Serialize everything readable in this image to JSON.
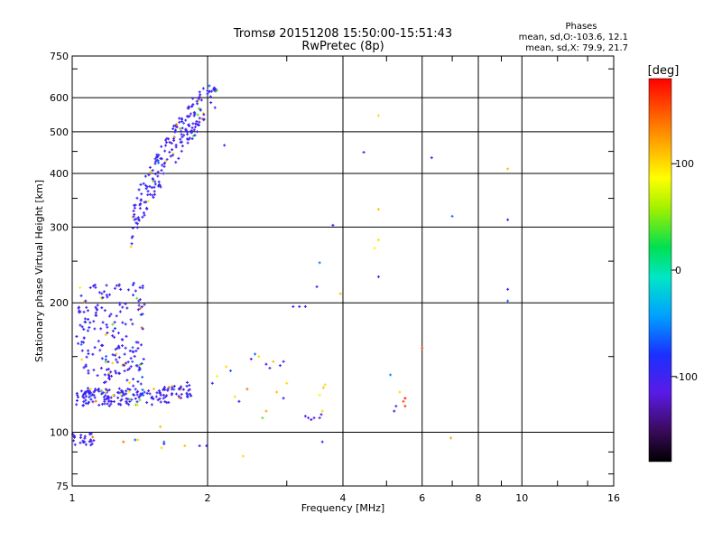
{
  "header": {
    "title_line1": "Tromsø 20151208 15:50:00-15:51:43",
    "title_line2": "RwPretec (8p)"
  },
  "info": {
    "heading": "Phases",
    "line1": "mean, sd,O:-103.6, 12.1",
    "line2": "mean, sd,X:  79.9, 21.7"
  },
  "colorbar": {
    "label": "[deg]",
    "tick_labels": [
      "100",
      "0",
      "-100"
    ],
    "tick_values": [
      100,
      0,
      -100
    ],
    "range": [
      -180,
      180
    ]
  },
  "chart_data": {
    "type": "scatter",
    "title": "Tromsø 20151208 15:50:00-15:51:43",
    "subtitle": "RwPretec (8p)",
    "xlabel": "Frequency [MHz]",
    "ylabel": "Stationary phase Virtual Height [km]",
    "x_scale": "log",
    "y_scale": "log",
    "xlim": [
      1,
      16
    ],
    "ylim": [
      75,
      750
    ],
    "x_ticks": [
      1,
      2,
      4,
      6,
      8,
      10,
      16
    ],
    "x_tick_labels": [
      "1",
      "2",
      "4",
      "6",
      "8",
      "10",
      "16"
    ],
    "y_ticks": [
      75,
      100,
      200,
      300,
      400,
      500,
      600,
      750
    ],
    "y_tick_labels": [
      "75",
      "100",
      "200",
      "300",
      "400",
      "500",
      "600",
      "750"
    ],
    "grid": true,
    "color_scale": "rainbow phase [deg], -180 to 180",
    "clusters": [
      {
        "name": "F2 trace (O)",
        "f_range": [
          1.35,
          2.1
        ],
        "h_range": [
          300,
          640
        ],
        "phase": -100,
        "count": 220
      },
      {
        "name": "F region spread",
        "f_range": [
          1.02,
          1.45
        ],
        "h_range": [
          115,
          225
        ],
        "phase": -100,
        "count": 240
      },
      {
        "name": "E trace",
        "f_range": [
          1.02,
          1.85
        ],
        "h_range": [
          112,
          130
        ],
        "phase": -100,
        "count": 150
      },
      {
        "name": "Low echoes",
        "f_range": [
          1.0,
          1.12
        ],
        "h_range": [
          93,
          100
        ],
        "phase": -100,
        "count": 25
      }
    ],
    "points": [
      {
        "x": 2.18,
        "y": 465,
        "phase": -110
      },
      {
        "x": 4.45,
        "y": 448,
        "phase": -110
      },
      {
        "x": 4.8,
        "y": 545,
        "phase": 100
      },
      {
        "x": 4.8,
        "y": 330,
        "phase": 110
      },
      {
        "x": 4.8,
        "y": 280,
        "phase": 100
      },
      {
        "x": 4.7,
        "y": 268,
        "phase": 90
      },
      {
        "x": 4.8,
        "y": 230,
        "phase": -110
      },
      {
        "x": 6.3,
        "y": 435,
        "phase": -110
      },
      {
        "x": 7.0,
        "y": 318,
        "phase": -60
      },
      {
        "x": 9.3,
        "y": 312,
        "phase": -100
      },
      {
        "x": 9.3,
        "y": 410,
        "phase": 110
      },
      {
        "x": 9.3,
        "y": 215,
        "phase": -100
      },
      {
        "x": 9.3,
        "y": 202,
        "phase": -60
      },
      {
        "x": 3.8,
        "y": 303,
        "phase": -110
      },
      {
        "x": 3.55,
        "y": 248,
        "phase": -50
      },
      {
        "x": 3.5,
        "y": 218,
        "phase": -100
      },
      {
        "x": 3.95,
        "y": 210,
        "phase": 110
      },
      {
        "x": 3.1,
        "y": 196,
        "phase": -100
      },
      {
        "x": 3.2,
        "y": 196,
        "phase": -100
      },
      {
        "x": 3.3,
        "y": 196,
        "phase": -100
      },
      {
        "x": 6.0,
        "y": 157,
        "phase": 150
      },
      {
        "x": 5.1,
        "y": 136,
        "phase": -50
      },
      {
        "x": 5.5,
        "y": 120,
        "phase": 170
      },
      {
        "x": 5.45,
        "y": 118,
        "phase": 150
      },
      {
        "x": 5.25,
        "y": 115,
        "phase": -100
      },
      {
        "x": 5.2,
        "y": 112,
        "phase": -100
      },
      {
        "x": 5.35,
        "y": 124,
        "phase": 100
      },
      {
        "x": 5.5,
        "y": 115,
        "phase": 160
      },
      {
        "x": 6.95,
        "y": 97,
        "phase": 120
      },
      {
        "x": 3.6,
        "y": 95,
        "phase": -80
      },
      {
        "x": 2.4,
        "y": 88,
        "phase": 100
      },
      {
        "x": 3.3,
        "y": 109,
        "phase": -110
      },
      {
        "x": 3.35,
        "y": 108,
        "phase": -110
      },
      {
        "x": 3.4,
        "y": 107,
        "phase": -110
      },
      {
        "x": 3.45,
        "y": 108,
        "phase": -110
      },
      {
        "x": 3.55,
        "y": 108,
        "phase": -100
      },
      {
        "x": 3.58,
        "y": 110,
        "phase": -100
      },
      {
        "x": 3.6,
        "y": 112,
        "phase": 100
      },
      {
        "x": 3.62,
        "y": 127,
        "phase": 110
      },
      {
        "x": 3.65,
        "y": 129,
        "phase": 100
      },
      {
        "x": 3.55,
        "y": 122,
        "phase": 90
      },
      {
        "x": 2.5,
        "y": 148,
        "phase": -110
      },
      {
        "x": 2.55,
        "y": 152,
        "phase": -60
      },
      {
        "x": 2.6,
        "y": 150,
        "phase": 100
      },
      {
        "x": 2.7,
        "y": 144,
        "phase": -100
      },
      {
        "x": 2.75,
        "y": 141,
        "phase": -110
      },
      {
        "x": 2.8,
        "y": 146,
        "phase": 110
      },
      {
        "x": 2.9,
        "y": 143,
        "phase": -100
      },
      {
        "x": 2.95,
        "y": 146,
        "phase": -100
      },
      {
        "x": 2.65,
        "y": 108,
        "phase": 40
      },
      {
        "x": 2.7,
        "y": 112,
        "phase": 120
      },
      {
        "x": 2.85,
        "y": 124,
        "phase": 110
      },
      {
        "x": 2.95,
        "y": 120,
        "phase": -100
      },
      {
        "x": 3.0,
        "y": 130,
        "phase": 100
      },
      {
        "x": 2.3,
        "y": 121,
        "phase": 100
      },
      {
        "x": 2.35,
        "y": 118,
        "phase": -100
      },
      {
        "x": 2.45,
        "y": 126,
        "phase": 140
      },
      {
        "x": 2.2,
        "y": 142,
        "phase": 100
      },
      {
        "x": 2.25,
        "y": 139,
        "phase": -60
      },
      {
        "x": 2.05,
        "y": 130,
        "phase": -100
      },
      {
        "x": 2.1,
        "y": 135,
        "phase": 90
      },
      {
        "x": 1.99,
        "y": 93,
        "phase": -100
      },
      {
        "x": 1.92,
        "y": 93,
        "phase": -110
      },
      {
        "x": 1.6,
        "y": 95,
        "phase": -60
      },
      {
        "x": 1.58,
        "y": 92,
        "phase": 100
      },
      {
        "x": 1.78,
        "y": 93,
        "phase": 110
      },
      {
        "x": 1.57,
        "y": 103,
        "phase": 110
      },
      {
        "x": 1.6,
        "y": 94,
        "phase": -100
      },
      {
        "x": 1.3,
        "y": 95,
        "phase": 140
      },
      {
        "x": 1.38,
        "y": 96,
        "phase": -60
      },
      {
        "x": 1.4,
        "y": 96,
        "phase": 100
      }
    ]
  }
}
